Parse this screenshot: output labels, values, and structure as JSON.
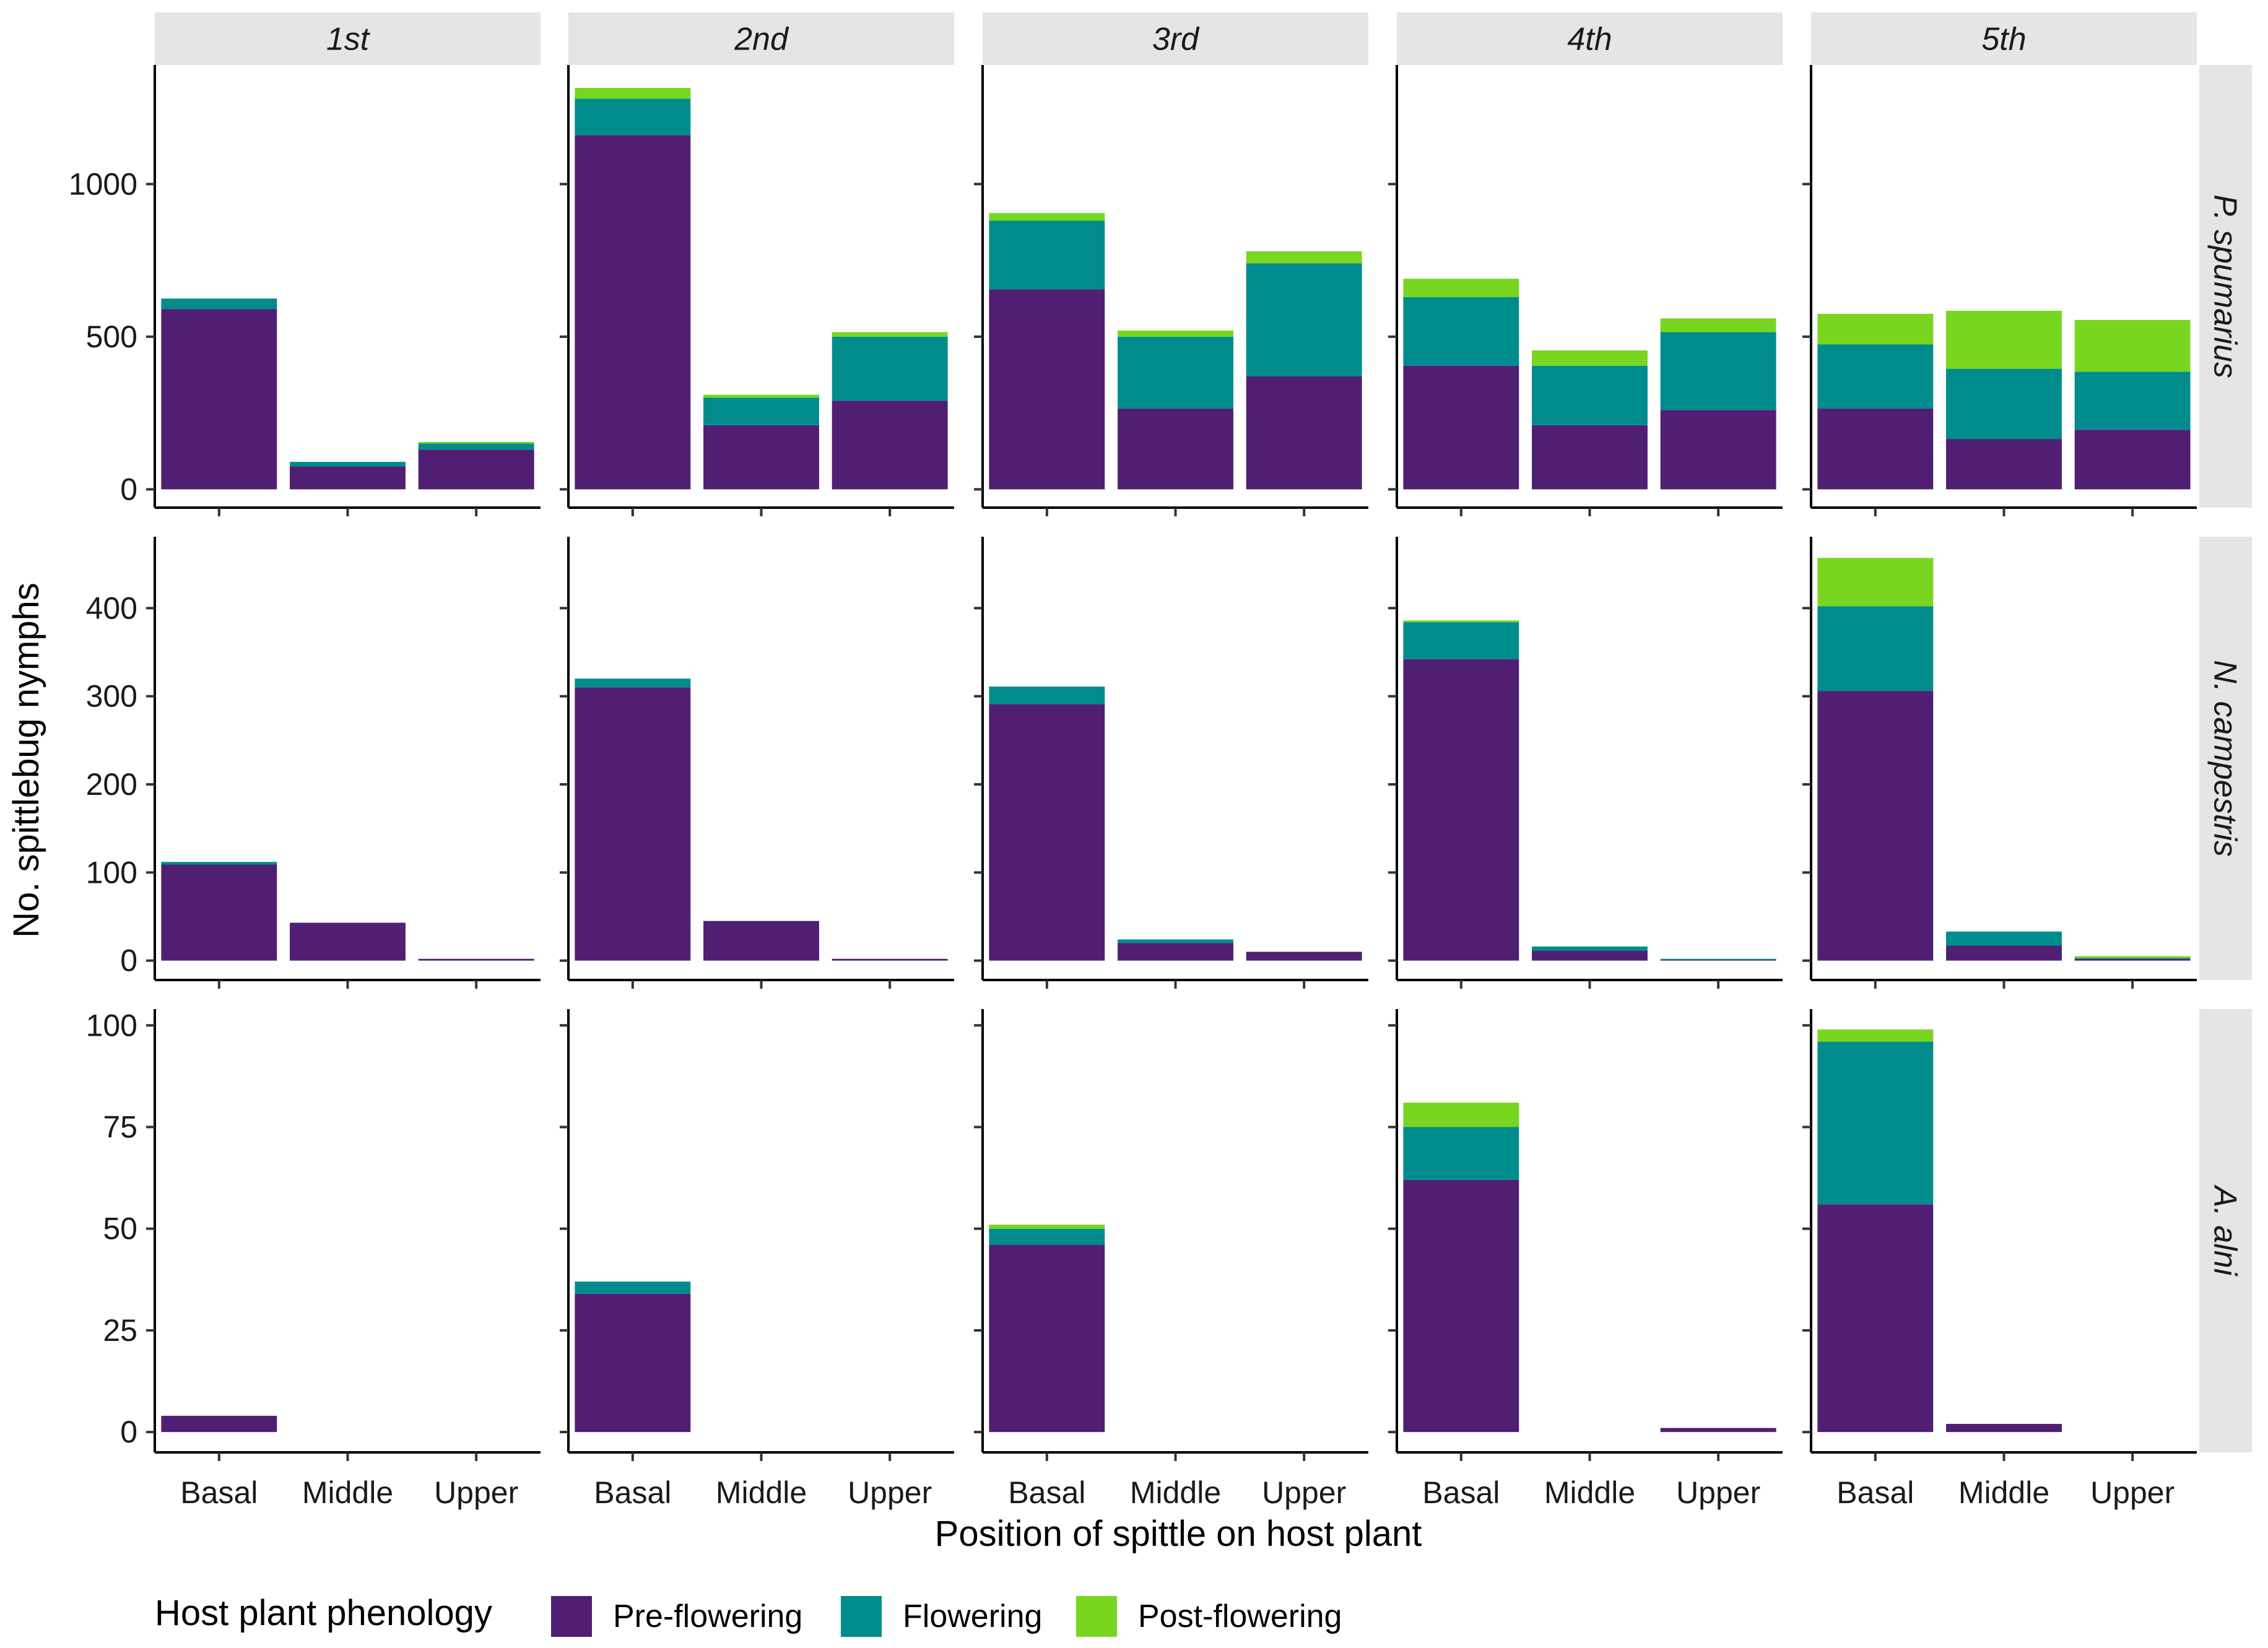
{
  "chart_data": {
    "type": "bar",
    "stacked": true,
    "faceted": true,
    "xlabel": "Position of spittle on host plant",
    "ylabel": "No. spittlebug nymphs",
    "column_facets": [
      "1st",
      "2nd",
      "3rd",
      "4th",
      "5th"
    ],
    "row_facets": [
      "P. spumarius",
      "N. campestris",
      "A. alni"
    ],
    "categories": [
      "Basal",
      "Middle",
      "Upper"
    ],
    "legend": {
      "title": "Host plant phenology",
      "position": "bottom",
      "entries": [
        "Pre-flowering",
        "Flowering",
        "Post-flowering"
      ]
    },
    "colors": {
      "Pre-flowering": "#501f74",
      "Flowering": "#008c8c",
      "Post-flowering": "#78d621"
    },
    "y_axes": [
      {
        "row": "P. spumarius",
        "ylim": [
          -60,
          1390
        ],
        "ticks": [
          0,
          500,
          1000
        ],
        "tick_labels": [
          "0",
          "500",
          "1000"
        ]
      },
      {
        "row": "N. campestris",
        "ylim": [
          -22,
          481
        ],
        "ticks": [
          0,
          100,
          200,
          300,
          400
        ],
        "tick_labels": [
          "0",
          "100",
          "200",
          "300",
          "400"
        ]
      },
      {
        "row": "A. alni",
        "ylim": [
          -5,
          104
        ],
        "ticks": [
          0,
          25,
          50,
          75,
          100
        ],
        "tick_labels": [
          "0",
          "25",
          "50",
          "75",
          "100"
        ]
      }
    ],
    "panels": [
      {
        "row": "P. spumarius",
        "column": "1st",
        "series": [
          {
            "name": "Pre-flowering",
            "values": [
              590,
              75,
              130
            ]
          },
          {
            "name": "Flowering",
            "values": [
              35,
              15,
              20
            ]
          },
          {
            "name": "Post-flowering",
            "values": [
              0,
              0,
              5
            ]
          }
        ]
      },
      {
        "row": "P. spumarius",
        "column": "2nd",
        "series": [
          {
            "name": "Pre-flowering",
            "values": [
              1160,
              210,
              290
            ]
          },
          {
            "name": "Flowering",
            "values": [
              120,
              90,
              210
            ]
          },
          {
            "name": "Post-flowering",
            "values": [
              35,
              10,
              15
            ]
          }
        ]
      },
      {
        "row": "P. spumarius",
        "column": "3rd",
        "series": [
          {
            "name": "Pre-flowering",
            "values": [
              655,
              265,
              370
            ]
          },
          {
            "name": "Flowering",
            "values": [
              225,
              235,
              370
            ]
          },
          {
            "name": "Post-flowering",
            "values": [
              25,
              20,
              40
            ]
          }
        ]
      },
      {
        "row": "P. spumarius",
        "column": "4th",
        "series": [
          {
            "name": "Pre-flowering",
            "values": [
              405,
              210,
              260
            ]
          },
          {
            "name": "Flowering",
            "values": [
              225,
              195,
              255
            ]
          },
          {
            "name": "Post-flowering",
            "values": [
              60,
              50,
              45
            ]
          }
        ]
      },
      {
        "row": "P. spumarius",
        "column": "5th",
        "series": [
          {
            "name": "Pre-flowering",
            "values": [
              265,
              165,
              195
            ]
          },
          {
            "name": "Flowering",
            "values": [
              210,
              230,
              190
            ]
          },
          {
            "name": "Post-flowering",
            "values": [
              100,
              190,
              170
            ]
          }
        ]
      },
      {
        "row": "N. campestris",
        "column": "1st",
        "series": [
          {
            "name": "Pre-flowering",
            "values": [
              109,
              43,
              2
            ]
          },
          {
            "name": "Flowering",
            "values": [
              3,
              0,
              0
            ]
          },
          {
            "name": "Post-flowering",
            "values": [
              0,
              0,
              0
            ]
          }
        ]
      },
      {
        "row": "N. campestris",
        "column": "2nd",
        "series": [
          {
            "name": "Pre-flowering",
            "values": [
              310,
              45,
              2
            ]
          },
          {
            "name": "Flowering",
            "values": [
              10,
              0,
              0
            ]
          },
          {
            "name": "Post-flowering",
            "values": [
              0,
              0,
              0
            ]
          }
        ]
      },
      {
        "row": "N. campestris",
        "column": "3rd",
        "series": [
          {
            "name": "Pre-flowering",
            "values": [
              291,
              20,
              10
            ]
          },
          {
            "name": "Flowering",
            "values": [
              20,
              4,
              0
            ]
          },
          {
            "name": "Post-flowering",
            "values": [
              0,
              0,
              0
            ]
          }
        ]
      },
      {
        "row": "N. campestris",
        "column": "4th",
        "series": [
          {
            "name": "Pre-flowering",
            "values": [
              342,
              11,
              1
            ]
          },
          {
            "name": "Flowering",
            "values": [
              42,
              5,
              1
            ]
          },
          {
            "name": "Post-flowering",
            "values": [
              2,
              0,
              0
            ]
          }
        ]
      },
      {
        "row": "N. campestris",
        "column": "5th",
        "series": [
          {
            "name": "Pre-flowering",
            "values": [
              306,
              17,
              2
            ]
          },
          {
            "name": "Flowering",
            "values": [
              96,
              16,
              1
            ]
          },
          {
            "name": "Post-flowering",
            "values": [
              55,
              0,
              2
            ]
          }
        ]
      },
      {
        "row": "A. alni",
        "column": "1st",
        "series": [
          {
            "name": "Pre-flowering",
            "values": [
              4,
              0,
              0
            ]
          },
          {
            "name": "Flowering",
            "values": [
              0,
              0,
              0
            ]
          },
          {
            "name": "Post-flowering",
            "values": [
              0,
              0,
              0
            ]
          }
        ]
      },
      {
        "row": "A. alni",
        "column": "2nd",
        "series": [
          {
            "name": "Pre-flowering",
            "values": [
              34,
              0,
              0
            ]
          },
          {
            "name": "Flowering",
            "values": [
              3,
              0,
              0
            ]
          },
          {
            "name": "Post-flowering",
            "values": [
              0,
              0,
              0
            ]
          }
        ]
      },
      {
        "row": "A. alni",
        "column": "3rd",
        "series": [
          {
            "name": "Pre-flowering",
            "values": [
              46,
              0,
              0
            ]
          },
          {
            "name": "Flowering",
            "values": [
              4,
              0,
              0
            ]
          },
          {
            "name": "Post-flowering",
            "values": [
              1,
              0,
              0
            ]
          }
        ]
      },
      {
        "row": "A. alni",
        "column": "4th",
        "series": [
          {
            "name": "Pre-flowering",
            "values": [
              62,
              0,
              1
            ]
          },
          {
            "name": "Flowering",
            "values": [
              13,
              0,
              0
            ]
          },
          {
            "name": "Post-flowering",
            "values": [
              6,
              0,
              0
            ]
          }
        ]
      },
      {
        "row": "A. alni",
        "column": "5th",
        "series": [
          {
            "name": "Pre-flowering",
            "values": [
              56,
              2,
              0
            ]
          },
          {
            "name": "Flowering",
            "values": [
              40,
              0,
              0
            ]
          },
          {
            "name": "Post-flowering",
            "values": [
              3,
              0,
              0
            ]
          }
        ]
      }
    ]
  }
}
